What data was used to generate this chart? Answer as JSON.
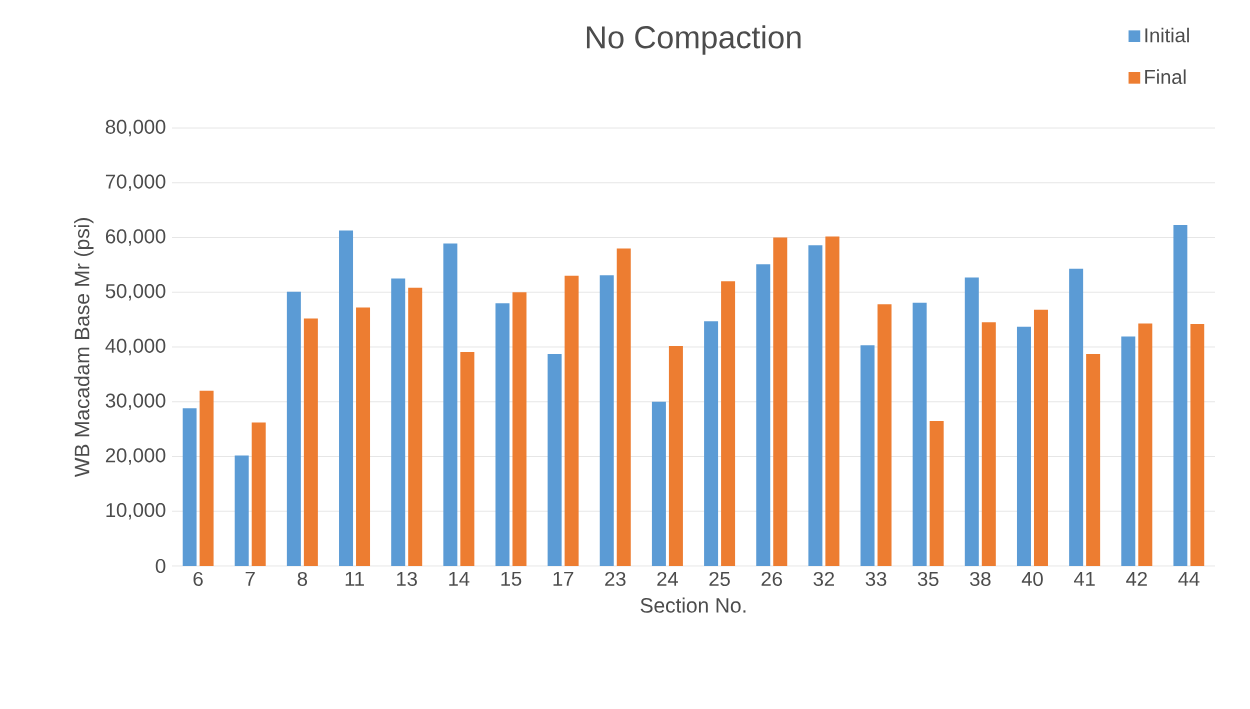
{
  "chart_data": {
    "type": "bar",
    "title": "No Compaction",
    "xlabel": "Section No.",
    "ylabel": "WB Macadam Base Mr (psi)",
    "categories": [
      "6",
      "7",
      "8",
      "11",
      "13",
      "14",
      "15",
      "17",
      "23",
      "24",
      "25",
      "26",
      "32",
      "33",
      "35",
      "38",
      "40",
      "41",
      "42",
      "44"
    ],
    "series": [
      {
        "name": "Initial",
        "color": "#5b9bd5",
        "values": [
          28800,
          20200,
          50100,
          61300,
          52500,
          58900,
          48000,
          38700,
          53100,
          30000,
          44700,
          55100,
          58600,
          40300,
          48100,
          52700,
          43700,
          54300,
          41900,
          62300
        ]
      },
      {
        "name": "Final",
        "color": "#ed7d31",
        "values": [
          32000,
          26200,
          45200,
          47200,
          50800,
          39100,
          50000,
          53000,
          58000,
          40200,
          52000,
          60000,
          60200,
          47800,
          26500,
          44500,
          46800,
          38700,
          44300,
          44200
        ]
      }
    ],
    "ylim": [
      0,
      80000
    ],
    "yticks": [
      {
        "value": 0,
        "label": "0"
      },
      {
        "value": 10000,
        "label": "10,000"
      },
      {
        "value": 20000,
        "label": "20,000"
      },
      {
        "value": 30000,
        "label": "30,000"
      },
      {
        "value": 40000,
        "label": "40,000"
      },
      {
        "value": 50000,
        "label": "50,000"
      },
      {
        "value": 60000,
        "label": "60,000"
      },
      {
        "value": 70000,
        "label": "70,000"
      },
      {
        "value": 80000,
        "label": "80,000"
      }
    ],
    "grid": "y",
    "legend": "top right"
  }
}
